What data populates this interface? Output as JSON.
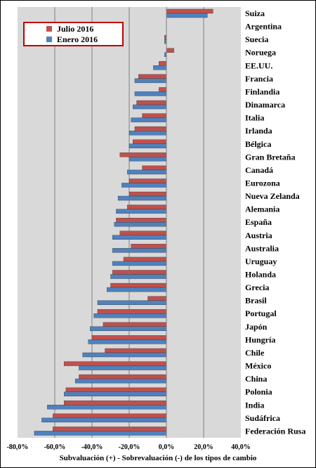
{
  "chart_data": {
    "type": "bar",
    "orientation": "horizontal",
    "categories": [
      "Suiza",
      "Argentina",
      "Suecia",
      "Noruega",
      "EE.UU.",
      "Francia",
      "Finlandia",
      "Dinamarca",
      "Italia",
      "Irlanda",
      "Bélgica",
      "Gran Bretaña",
      "Canadá",
      "Eurozona",
      "Nueva Zelanda",
      "Alemania",
      "España",
      "Austria",
      "Australia",
      "Uruguay",
      "Holanda",
      "Grecia",
      "Brasil",
      "Portugal",
      "Japón",
      "Hungría",
      "Chile",
      "México",
      "China",
      "Polonia",
      "India",
      "Sudáfrica",
      "Federación Rusa"
    ],
    "series": [
      {
        "name": "Julio 2016",
        "color": "#c0504d",
        "values": [
          25,
          null,
          -1,
          4,
          -4,
          -15,
          -4,
          -16,
          -13,
          -17,
          -18,
          -25,
          -13,
          -20,
          -20,
          -21,
          -27,
          -25,
          -19,
          -23,
          -29,
          -30,
          -10,
          -37,
          -34,
          -40,
          -33,
          -55,
          -47,
          -54,
          -55,
          -61,
          -61
        ]
      },
      {
        "name": "Enero 2016",
        "color": "#4f81bd",
        "values": [
          22,
          null,
          -1,
          -1,
          -7,
          -17,
          -17,
          -18,
          -19,
          -20,
          -20,
          -20,
          -21,
          -24,
          -26,
          -27,
          -28,
          -29,
          -29,
          -29,
          -30,
          -32,
          -37,
          -39,
          -41,
          -42,
          -45,
          -47,
          -49,
          -55,
          -64,
          -67,
          -71
        ]
      }
    ],
    "xlim": [
      -80,
      40
    ],
    "xticks": [
      "-80,0%",
      "-60,0%",
      "-40,0%",
      "-20,0%",
      "0,0%",
      "20,0%",
      "40,0%"
    ],
    "xlabel": "Subvaluación  (+) - Sobrevaluación  (-) de los tipos de cambio",
    "grid": "vertical",
    "legend_position": "top-left"
  }
}
